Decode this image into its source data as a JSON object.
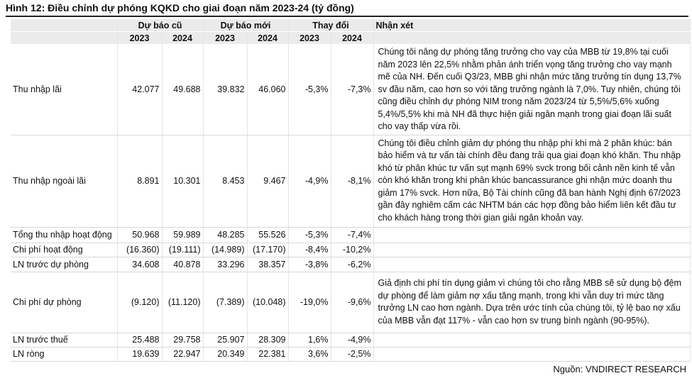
{
  "title": "Hình 12: Điều chỉnh dự phóng KQKD cho giai đoạn năm 2023-24 (tỷ đồng)",
  "table": {
    "group_headers": [
      "Dự báo cũ",
      "Dự báo mới",
      "Thay đổi",
      "Nhận xét"
    ],
    "year_headers": [
      "2023",
      "2024",
      "2023",
      "2024",
      "2023",
      "2024"
    ],
    "rows": [
      {
        "label": "Thu nhập lãi",
        "values": [
          "42.077",
          "49.688",
          "39.832",
          "46.060",
          "-5,3%",
          "-7,3%"
        ],
        "comment": "Chúng tôi nâng dự phóng tăng trưởng cho vay của MBB từ 19,8% tại cuối năm 2023 lên 22,5% nhằm phản ánh triển vọng tăng trưởng cho vay mạnh mẽ của NH. Đến cuối Q3/23, MBB ghi nhận mức tăng trưởng tín dụng 13,7% sv đầu năm, cao hơn so với tăng trưởng ngành là 7,0%. Tuy nhiên, chúng tôi cũng điều chỉnh dự phóng NIM trong năm 2023/24 từ 5,5%/5,6% xuống 5,4%/5,5% khi mà NH đã thực hiện giải ngân mạnh trong giai đoạn lãi suất cho vay thấp vừa rồi."
      },
      {
        "label": "Thu nhập ngoài lãi",
        "values": [
          "8.891",
          "10.301",
          "8.453",
          "9.467",
          "-4,9%",
          "-8,1%"
        ],
        "comment": "Chúng tôi điều chỉnh giảm dự phóng thu nhập phí khi mà 2 phân khúc: bán bảo hiểm và tư vấn tài chính đều đang trải qua giai đoạn khó khăn. Thu nhập khó từ phân khúc tư vấn sụt mạnh 69% svck trong bối cảnh nền kinh tế vẫn còn khó khăn trong khi phân khúc bancassurance ghi nhận mức doanh thu giảm 17% svck. Hơn nữa, Bộ Tài chính cũng đã ban hành Nghị định 67/2023 gần đây nghiêm cấm các NHTM bán các hợp đồng bảo hiểm liên kết đầu tư cho khách hàng trong thời gian giải ngân khoản vay."
      },
      {
        "label": "Tổng thu nhập hoạt động",
        "values": [
          "50.968",
          "59.989",
          "48.285",
          "55.526",
          "-5,3%",
          "-7,4%"
        ]
      },
      {
        "label": "Chi phí hoạt động",
        "values": [
          "(16.360)",
          "(19.111)",
          "(14.989)",
          "(17.170)",
          "-8,4%",
          "-10,2%"
        ]
      },
      {
        "label": "LN trước dự phòng",
        "values": [
          "34.608",
          "40.878",
          "33.296",
          "38.357",
          "-3,8%",
          "-6,2%"
        ]
      },
      {
        "label": "Chi phí dự phòng",
        "values": [
          "(9.120)",
          "(11.120)",
          "(7.389)",
          "(10.048)",
          "-19,0%",
          "-9,6%"
        ],
        "comment": "Giả định chi phí tín dụng giảm vì chúng tôi cho rằng MBB sẽ sử dụng bộ đệm dự phòng để làm giảm nợ xấu tăng mạnh, trong khi vẫn duy trì mức tăng trưởng LN cao hơn ngành. Dựa trên ước tính của chúng tôi, tỷ lệ bao nợ xấu của MBB vẫn đạt 117% - vẫn cao hơn sv trung bình ngành (90-95%)."
      },
      {
        "label": "LN trước thuế",
        "values": [
          "25.488",
          "29.758",
          "25.907",
          "28.309",
          "1,6%",
          "-4,9%"
        ]
      },
      {
        "label": "LN ròng",
        "values": [
          "19.639",
          "22.947",
          "20.349",
          "22.381",
          "3,6%",
          "-2,5%"
        ]
      }
    ]
  },
  "source": "Nguồn: VNDIRECT RESEARCH"
}
